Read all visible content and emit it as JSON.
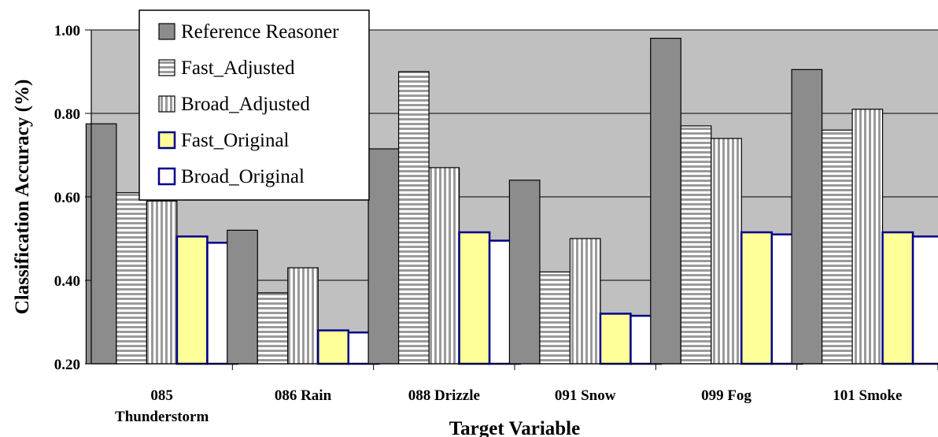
{
  "chart_data": {
    "type": "bar",
    "title": "",
    "xlabel": "Target Variable",
    "ylabel": "Classification Accuracy (%)",
    "ylim": [
      0.2,
      1.0
    ],
    "yticks": [
      "0.20",
      "0.40",
      "0.60",
      "0.80",
      "1.00"
    ],
    "grid": true,
    "legend_position": "top-left",
    "categories": [
      [
        "085",
        "Thunderstorm"
      ],
      [
        "086 Rain"
      ],
      [
        "088 Drizzle"
      ],
      [
        "091 Snow"
      ],
      [
        "099 Fog"
      ],
      [
        "101 Smoke"
      ]
    ],
    "series": [
      {
        "name": "Reference Reasoner",
        "values": [
          0.775,
          0.52,
          0.715,
          0.64,
          0.98,
          0.905
        ],
        "fill": "#8c8c8c",
        "stroke": "#000000",
        "pattern": "solid"
      },
      {
        "name": "Fast_Adjusted",
        "values": [
          0.61,
          0.37,
          0.9,
          0.42,
          0.77,
          0.76
        ],
        "fill": "#ffffff",
        "stroke": "#000000",
        "pattern": "horizontal-stripes"
      },
      {
        "name": "Broad_Adjusted",
        "values": [
          0.59,
          0.43,
          0.67,
          0.5,
          0.74,
          0.81
        ],
        "fill": "#ffffff",
        "stroke": "#000000",
        "pattern": "vertical-stripes"
      },
      {
        "name": "Fast_Original",
        "values": [
          0.505,
          0.28,
          0.515,
          0.32,
          0.515,
          0.515
        ],
        "fill": "#ffff99",
        "stroke": "#00008b",
        "pattern": "solid"
      },
      {
        "name": "Broad_Original",
        "values": [
          0.49,
          0.275,
          0.495,
          0.315,
          0.51,
          0.505
        ],
        "fill": "#ffffff",
        "stroke": "#00008b",
        "pattern": "solid"
      }
    ],
    "plot_background": "#c0c0c0"
  }
}
